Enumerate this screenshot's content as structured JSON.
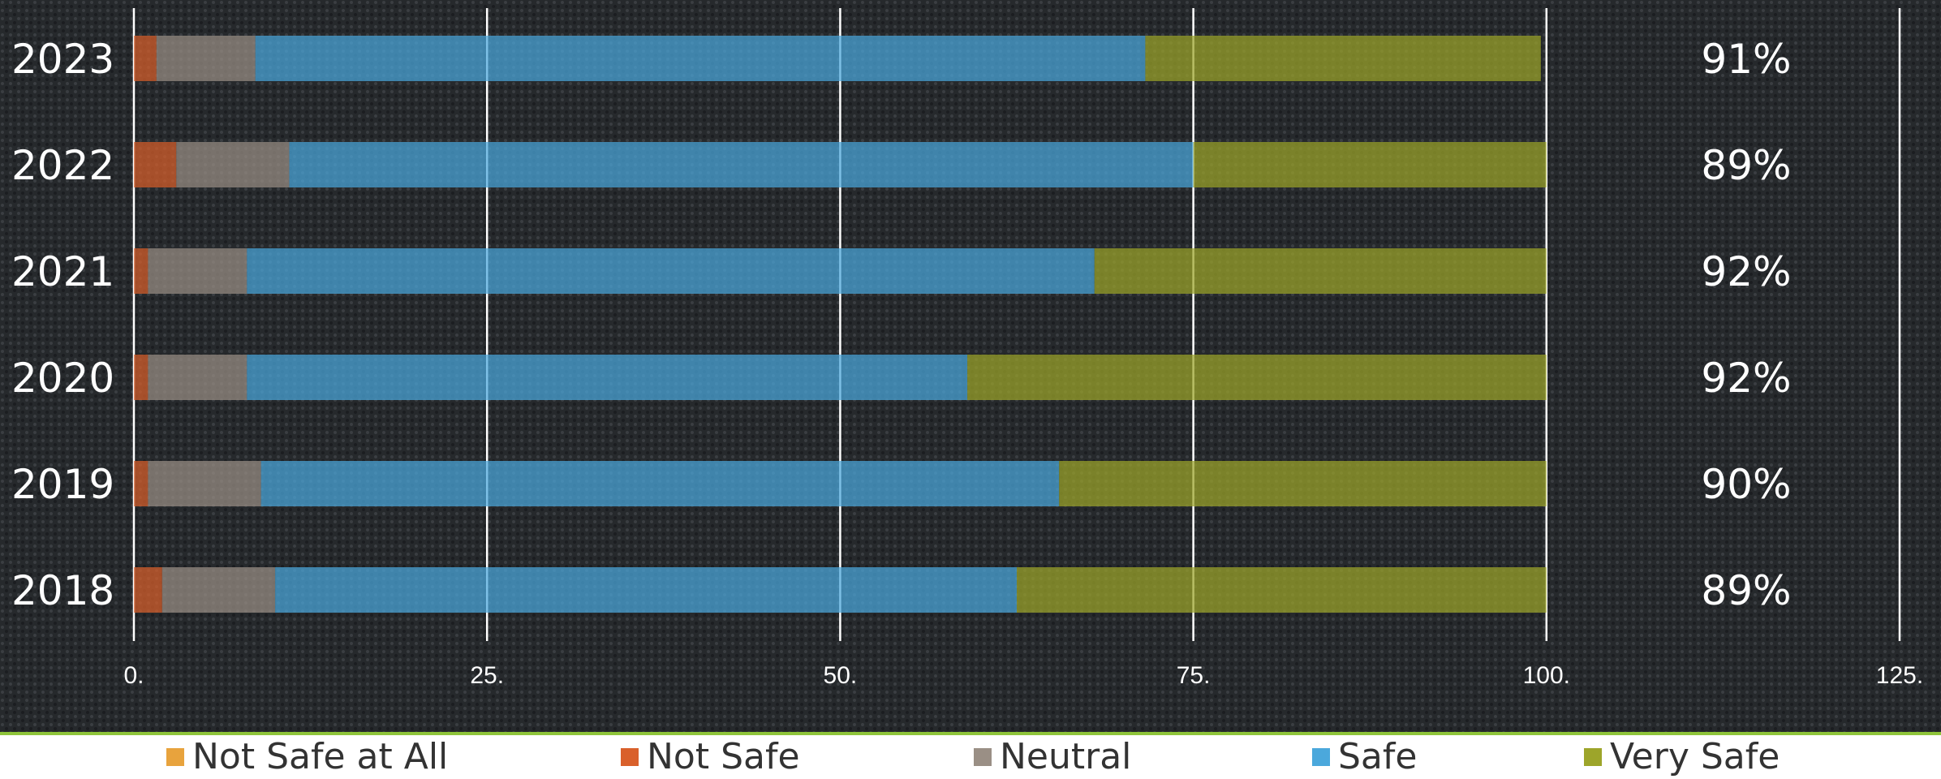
{
  "chart_data": {
    "type": "bar",
    "orientation": "horizontal",
    "stacked": true,
    "categories": [
      "2023",
      "2022",
      "2021",
      "2020",
      "2019",
      "2018"
    ],
    "series": [
      {
        "name": "Not Safe at All",
        "color": "#e8a33d",
        "values": [
          0,
          0,
          0,
          0,
          0,
          0
        ]
      },
      {
        "name": "Not Safe",
        "color": "#d9602b",
        "values": [
          1.6,
          3.0,
          1.0,
          1.0,
          1.0,
          2.0
        ]
      },
      {
        "name": "Neutral",
        "color": "#9a8f85",
        "values": [
          7.0,
          8.0,
          7.0,
          7.0,
          8.0,
          8.0
        ]
      },
      {
        "name": "Safe",
        "color": "#4ba8dc",
        "values": [
          63.0,
          64.0,
          60.0,
          51.0,
          56.5,
          52.5
        ]
      },
      {
        "name": "Very Safe",
        "color": "#9da52a",
        "values": [
          28.0,
          25.0,
          32.0,
          41.0,
          34.5,
          37.5
        ]
      }
    ],
    "right_labels": [
      "91%",
      "89%",
      "92%",
      "92%",
      "90%",
      "89%"
    ],
    "xlim": [
      0,
      125
    ],
    "xticks": [
      "0.",
      "25.",
      "50.",
      "75.",
      "100.",
      "125."
    ],
    "grid": true,
    "legend_position": "bottom"
  }
}
